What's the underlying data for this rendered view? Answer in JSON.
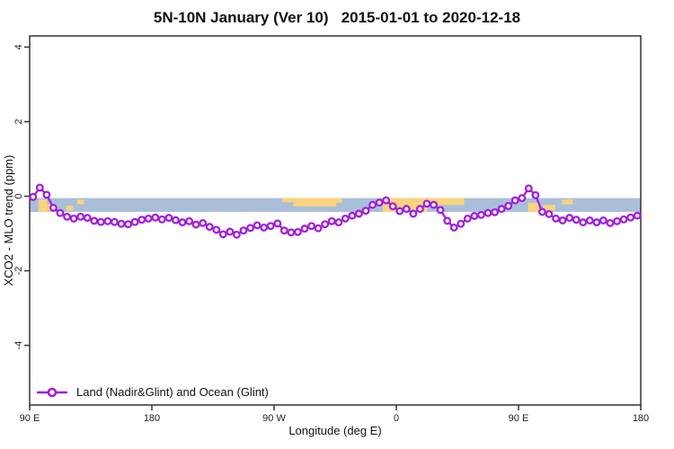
{
  "chart": {
    "title": "5N-10N January (Ver 10)   2015-01-01 to 2020-12-18"
  },
  "chart_data": {
    "type": "line",
    "title": "5N-10N January (Ver 10)   2015-01-01 to 2020-12-18",
    "xlabel": "Longitude (deg E)",
    "ylabel": "XCO2 - MLO trend (ppm)",
    "xlim": [
      90,
      540
    ],
    "ylim": [
      -5.6,
      4.3
    ],
    "grid": false,
    "x_ticks": [
      {
        "pos": 90,
        "label": "90 E"
      },
      {
        "pos": 180,
        "label": "180"
      },
      {
        "pos": 270,
        "label": "90 W"
      },
      {
        "pos": 360,
        "label": "0"
      },
      {
        "pos": 450,
        "label": "90 E"
      },
      {
        "pos": 540,
        "label": "180"
      }
    ],
    "y_ticks": [
      {
        "pos": -4,
        "label": "-4"
      },
      {
        "pos": -2,
        "label": "-2"
      },
      {
        "pos": 0,
        "label": "0"
      },
      {
        "pos": 2,
        "label": "2"
      },
      {
        "pos": 4,
        "label": "4"
      }
    ],
    "legend": {
      "position": "bottom-left",
      "entries": [
        {
          "label": "Land (Nadir&Glint) and Ocean (Glint)",
          "color": "#a21fdb",
          "marker": "open-circle"
        }
      ]
    },
    "series": [
      {
        "name": "Land (Nadir&Glint) and Ocean (Glint)",
        "color": "#a21fdb",
        "marker": "open-circle",
        "x": [
          92.5,
          97.5,
          102.5,
          107.5,
          112.5,
          117.5,
          122.5,
          127.5,
          132.5,
          137.5,
          142.5,
          147.5,
          152.5,
          157.5,
          162.5,
          167.5,
          172.5,
          177.5,
          182.5,
          187.5,
          192.5,
          197.5,
          202.5,
          207.5,
          212.5,
          217.5,
          222.5,
          227.5,
          232.5,
          237.5,
          242.5,
          247.5,
          252.5,
          257.5,
          262.5,
          267.5,
          272.5,
          277.5,
          282.5,
          287.5,
          292.5,
          297.5,
          302.5,
          307.5,
          312.5,
          317.5,
          322.5,
          327.5,
          332.5,
          337.5,
          342.5,
          347.5,
          352.5,
          357.5,
          362.5,
          367.5,
          372.5,
          377.5,
          382.5,
          387.5,
          392.5,
          397.5,
          402.5,
          407.5,
          412.5,
          417.5,
          422.5,
          427.5,
          432.5,
          437.5,
          442.5,
          447.5,
          452.5,
          457.5,
          462.5,
          467.5,
          472.5,
          477.5,
          482.5,
          487.5,
          492.5,
          497.5,
          502.5,
          507.5,
          512.5,
          517.5,
          522.5,
          527.5,
          532.5,
          537.5
        ],
        "y": [
          -0.02,
          0.23,
          0.04,
          -0.31,
          -0.45,
          -0.55,
          -0.6,
          -0.55,
          -0.58,
          -0.66,
          -0.69,
          -0.67,
          -0.69,
          -0.74,
          -0.75,
          -0.69,
          -0.63,
          -0.6,
          -0.57,
          -0.62,
          -0.58,
          -0.64,
          -0.7,
          -0.67,
          -0.76,
          -0.72,
          -0.82,
          -0.9,
          -1.02,
          -0.95,
          -1.03,
          -0.92,
          -0.85,
          -0.78,
          -0.84,
          -0.8,
          -0.73,
          -0.92,
          -0.97,
          -0.96,
          -0.87,
          -0.8,
          -0.86,
          -0.75,
          -0.67,
          -0.7,
          -0.6,
          -0.52,
          -0.47,
          -0.39,
          -0.23,
          -0.17,
          -0.11,
          -0.27,
          -0.4,
          -0.34,
          -0.47,
          -0.34,
          -0.2,
          -0.23,
          -0.37,
          -0.66,
          -0.84,
          -0.74,
          -0.6,
          -0.53,
          -0.5,
          -0.45,
          -0.43,
          -0.34,
          -0.26,
          -0.11,
          -0.05,
          0.21,
          0.03,
          -0.42,
          -0.48,
          -0.6,
          -0.65,
          -0.58,
          -0.63,
          -0.7,
          -0.65,
          -0.7,
          -0.65,
          -0.72,
          -0.67,
          -0.62,
          -0.57,
          -0.52
        ]
      }
    ],
    "map_band": {
      "description": "coastline strip for 5N-10N latitude band",
      "y_top_ppm": -0.05,
      "y_bottom_ppm": -0.42,
      "ocean_color": "#a9bfd9",
      "land_color": "#fbd27d",
      "land_patches": [
        {
          "lon_from": 96.5,
          "lon_to": 103,
          "v_top": 0.1,
          "v_bottom": 1.0
        },
        {
          "lon_from": 103,
          "lon_to": 107.5,
          "v_top": 0.45,
          "v_bottom": 0.95
        },
        {
          "lon_from": 117,
          "lon_to": 122,
          "v_top": 0.55,
          "v_bottom": 0.9
        },
        {
          "lon_from": 125,
          "lon_to": 130,
          "v_top": 0.1,
          "v_bottom": 0.45
        },
        {
          "lon_from": 276,
          "lon_to": 284,
          "v_top": 0.0,
          "v_bottom": 0.3
        },
        {
          "lon_from": 284,
          "lon_to": 316,
          "v_top": 0.0,
          "v_bottom": 0.6
        },
        {
          "lon_from": 316,
          "lon_to": 320,
          "v_top": 0.0,
          "v_bottom": 0.35
        },
        {
          "lon_from": 350,
          "lon_to": 383,
          "v_top": 0.0,
          "v_bottom": 1.0
        },
        {
          "lon_from": 383,
          "lon_to": 410,
          "v_top": 0.0,
          "v_bottom": 0.5
        },
        {
          "lon_from": 457,
          "lon_to": 465,
          "v_top": 0.35,
          "v_bottom": 1.0
        },
        {
          "lon_from": 468,
          "lon_to": 477,
          "v_top": 0.5,
          "v_bottom": 0.9
        },
        {
          "lon_from": 482,
          "lon_to": 490,
          "v_top": 0.1,
          "v_bottom": 0.45
        }
      ]
    },
    "axis_color": "#333333"
  }
}
